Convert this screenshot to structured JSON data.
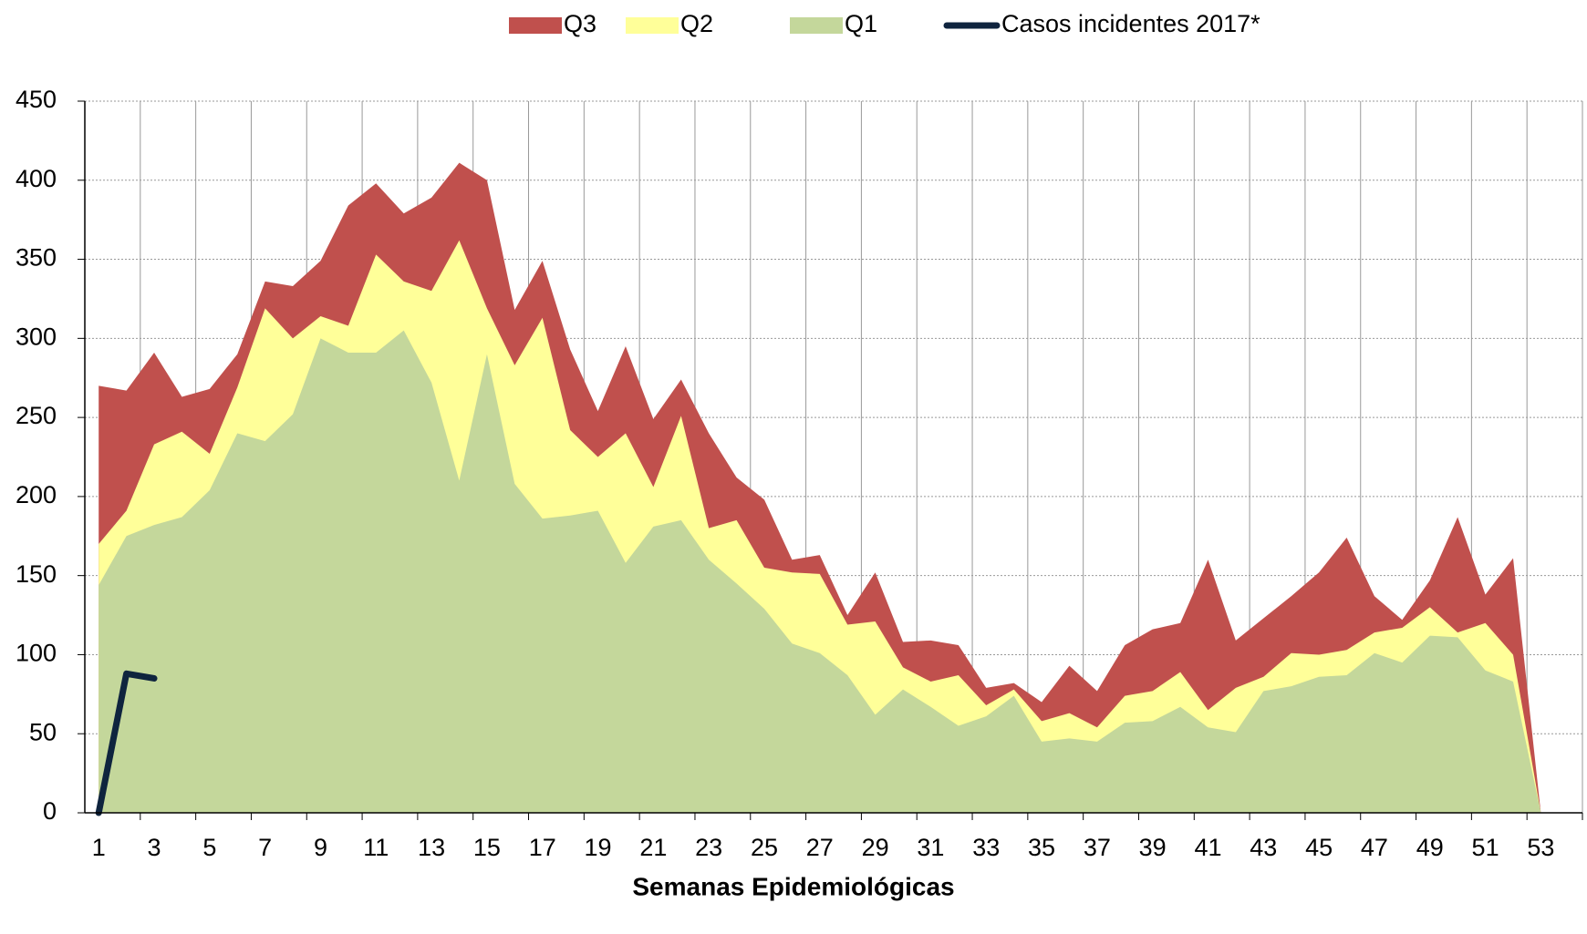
{
  "chart_data": {
    "type": "area",
    "x_label": "Semanas Epidemiológicas",
    "x": [
      1,
      2,
      3,
      4,
      5,
      6,
      7,
      8,
      9,
      10,
      11,
      12,
      13,
      14,
      15,
      16,
      17,
      18,
      19,
      20,
      21,
      22,
      23,
      24,
      25,
      26,
      27,
      28,
      29,
      30,
      31,
      32,
      33,
      34,
      35,
      36,
      37,
      38,
      39,
      40,
      41,
      42,
      43,
      44,
      45,
      46,
      47,
      48,
      49,
      50,
      51,
      52,
      53
    ],
    "xlim": [
      0.5,
      54.5
    ],
    "xticks": [
      1,
      3,
      5,
      7,
      9,
      11,
      13,
      15,
      17,
      19,
      21,
      23,
      25,
      27,
      29,
      31,
      33,
      35,
      37,
      39,
      41,
      43,
      45,
      47,
      49,
      51,
      53
    ],
    "ylim": [
      0,
      450
    ],
    "yticks": [
      0,
      50,
      100,
      150,
      200,
      250,
      300,
      350,
      400,
      450
    ],
    "grid": true,
    "legend": "top",
    "series": [
      {
        "name": "Q3",
        "color": "#c0504d",
        "values": [
          270,
          267,
          291,
          263,
          268,
          290,
          336,
          333,
          349,
          384,
          398,
          379,
          389,
          411,
          400,
          318,
          349,
          293,
          254,
          295,
          249,
          274,
          240,
          212,
          198,
          160,
          163,
          125,
          152,
          108,
          109,
          106,
          79,
          82,
          70,
          93,
          77,
          106,
          116,
          120,
          160,
          109,
          123,
          137,
          152,
          174,
          137,
          122,
          147,
          187,
          138,
          161,
          0
        ]
      },
      {
        "name": "Q2",
        "color": "#ffff99",
        "values": [
          170,
          191,
          233,
          241,
          227,
          269,
          319,
          300,
          314,
          308,
          353,
          336,
          330,
          362,
          319,
          283,
          313,
          242,
          225,
          240,
          206,
          251,
          180,
          185,
          155,
          152,
          151,
          119,
          121,
          92,
          83,
          87,
          68,
          78,
          58,
          63,
          54,
          74,
          77,
          89,
          65,
          79,
          86,
          101,
          100,
          103,
          114,
          117,
          130,
          114,
          120,
          100,
          0
        ]
      },
      {
        "name": "Q1",
        "color": "#c4d79b",
        "values": [
          144,
          175,
          182,
          187,
          204,
          240,
          235,
          252,
          300,
          291,
          291,
          305,
          272,
          210,
          290,
          208,
          186,
          188,
          191,
          158,
          181,
          185,
          160,
          145,
          129,
          107,
          101,
          87,
          62,
          78,
          67,
          55,
          61,
          74,
          45,
          47,
          45,
          57,
          58,
          67,
          54,
          51,
          77,
          80,
          86,
          87,
          101,
          95,
          112,
          111,
          90,
          83,
          0
        ]
      },
      {
        "name": "Casos incidentes 2017*",
        "type": "line",
        "color": "#0f243e",
        "values": [
          0,
          88,
          85,
          null,
          null,
          null,
          null,
          null,
          null,
          null,
          null,
          null,
          null,
          null,
          null,
          null,
          null,
          null,
          null,
          null,
          null,
          null,
          null,
          null,
          null,
          null,
          null,
          null,
          null,
          null,
          null,
          null,
          null,
          null,
          null,
          null,
          null,
          null,
          null,
          null,
          null,
          null,
          null,
          null,
          null,
          null,
          null,
          null,
          null,
          null,
          null,
          null,
          null
        ]
      }
    ]
  }
}
